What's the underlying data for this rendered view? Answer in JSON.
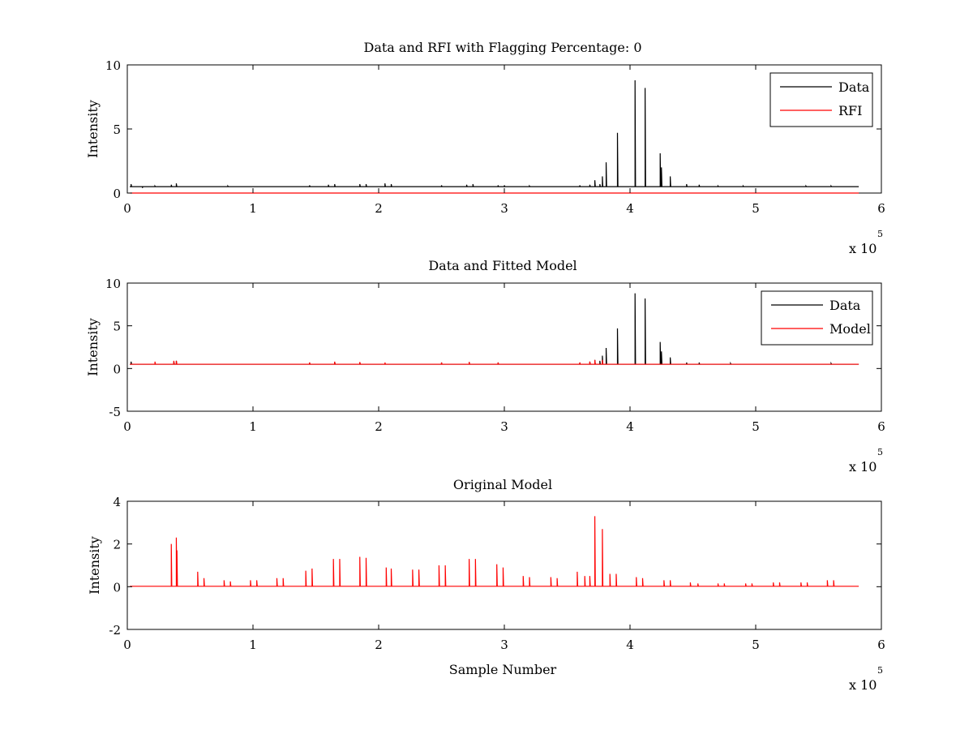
{
  "chart_data": [
    {
      "type": "line",
      "title": "Data and RFI with Flagging Percentage: 0",
      "xlabel": "",
      "ylabel": "Intensity",
      "xlim": [
        0,
        600000
      ],
      "ylim": [
        0,
        10
      ],
      "x_ticks": [
        "0",
        "1",
        "2",
        "3",
        "4",
        "5",
        "6"
      ],
      "y_ticks": [
        "0",
        "5",
        "10"
      ],
      "x_exponent": {
        "base": "x 10",
        "power": "5"
      },
      "grid": false,
      "legend_position": "top-right",
      "legend": [
        "Data",
        "RFI"
      ],
      "series": [
        {
          "name": "Data",
          "color": "#000000",
          "baseline": 0.5,
          "spikes": [
            [
              3000,
              0.7
            ],
            [
              12000,
              0.4
            ],
            [
              22000,
              0.55
            ],
            [
              35000,
              0.65
            ],
            [
              39000,
              0.75
            ],
            [
              80000,
              0.55
            ],
            [
              145000,
              0.6
            ],
            [
              160000,
              0.65
            ],
            [
              165000,
              0.7
            ],
            [
              185000,
              0.7
            ],
            [
              190000,
              0.7
            ],
            [
              205000,
              0.75
            ],
            [
              210000,
              0.7
            ],
            [
              250000,
              0.6
            ],
            [
              270000,
              0.65
            ],
            [
              275000,
              0.7
            ],
            [
              295000,
              0.6
            ],
            [
              300000,
              0.6
            ],
            [
              320000,
              0.55
            ],
            [
              360000,
              0.6
            ],
            [
              368000,
              0.65
            ],
            [
              372000,
              1.0
            ],
            [
              376000,
              0.7
            ],
            [
              378000,
              1.3
            ],
            [
              381000,
              2.4
            ],
            [
              390000,
              4.7
            ],
            [
              404000,
              8.8
            ],
            [
              412000,
              8.2
            ],
            [
              424000,
              3.1
            ],
            [
              425000,
              2.0
            ],
            [
              432000,
              1.3
            ],
            [
              445000,
              0.7
            ],
            [
              455000,
              0.65
            ],
            [
              470000,
              0.55
            ],
            [
              490000,
              0.55
            ],
            [
              540000,
              0.55
            ],
            [
              560000,
              0.55
            ]
          ]
        },
        {
          "name": "RFI",
          "color": "#ff0000",
          "baseline": 0,
          "spikes": []
        }
      ]
    },
    {
      "type": "line",
      "title": "Data and Fitted Model",
      "xlabel": "",
      "ylabel": "Intensity",
      "xlim": [
        0,
        600000
      ],
      "ylim": [
        -5,
        10
      ],
      "x_ticks": [
        "0",
        "1",
        "2",
        "3",
        "4",
        "5",
        "6"
      ],
      "y_ticks": [
        "-5",
        "0",
        "5",
        "10"
      ],
      "x_exponent": {
        "base": "x 10",
        "power": "5"
      },
      "grid": false,
      "legend_position": "top-right",
      "legend": [
        "Data",
        "Model"
      ],
      "series": [
        {
          "name": "Data",
          "color": "#000000",
          "baseline": 0.5,
          "spikes": [
            [
              3000,
              0.8
            ],
            [
              22000,
              0.7
            ],
            [
              37000,
              0.8
            ],
            [
              39000,
              0.9
            ],
            [
              145000,
              0.7
            ],
            [
              165000,
              0.75
            ],
            [
              185000,
              0.7
            ],
            [
              250000,
              0.7
            ],
            [
              272000,
              0.75
            ],
            [
              295000,
              0.7
            ],
            [
              360000,
              0.7
            ],
            [
              368000,
              0.8
            ],
            [
              372000,
              1.0
            ],
            [
              376000,
              0.9
            ],
            [
              378000,
              1.5
            ],
            [
              381000,
              2.4
            ],
            [
              390000,
              4.7
            ],
            [
              404000,
              8.8
            ],
            [
              412000,
              8.2
            ],
            [
              424000,
              3.1
            ],
            [
              425000,
              2.0
            ],
            [
              432000,
              1.3
            ],
            [
              445000,
              0.7
            ],
            [
              455000,
              0.7
            ],
            [
              480000,
              0.6
            ],
            [
              560000,
              0.6
            ]
          ]
        },
        {
          "name": "Model",
          "color": "#ff0000",
          "baseline": 0.5,
          "spikes": [
            [
              22000,
              0.8
            ],
            [
              37000,
              0.9
            ],
            [
              39000,
              0.9
            ],
            [
              145000,
              0.7
            ],
            [
              165000,
              0.8
            ],
            [
              185000,
              0.75
            ],
            [
              205000,
              0.7
            ],
            [
              250000,
              0.7
            ],
            [
              272000,
              0.75
            ],
            [
              295000,
              0.7
            ],
            [
              360000,
              0.7
            ],
            [
              368000,
              0.8
            ],
            [
              372000,
              1.0
            ],
            [
              378000,
              1.0
            ]
          ]
        }
      ]
    },
    {
      "type": "line",
      "title": "Original Model",
      "xlabel": "Sample Number",
      "ylabel": "Intensity",
      "xlim": [
        0,
        600000
      ],
      "ylim": [
        -2,
        4
      ],
      "x_ticks": [
        "0",
        "1",
        "2",
        "3",
        "4",
        "5",
        "6"
      ],
      "y_ticks": [
        "-2",
        "0",
        "2",
        "4"
      ],
      "x_exponent": {
        "base": "x 10",
        "power": "5"
      },
      "grid": false,
      "legend_position": "",
      "legend": [],
      "series": [
        {
          "name": "",
          "color": "#ff0000",
          "baseline": 0.02,
          "spikes": [
            [
              35000,
              2.0
            ],
            [
              39000,
              2.3
            ],
            [
              39500,
              1.7
            ],
            [
              56000,
              0.7
            ],
            [
              61000,
              0.4
            ],
            [
              77000,
              0.3
            ],
            [
              82000,
              0.25
            ],
            [
              98000,
              0.3
            ],
            [
              103000,
              0.3
            ],
            [
              119000,
              0.4
            ],
            [
              124000,
              0.4
            ],
            [
              142000,
              0.75
            ],
            [
              147000,
              0.85
            ],
            [
              164000,
              1.3
            ],
            [
              169000,
              1.3
            ],
            [
              185000,
              1.4
            ],
            [
              190000,
              1.35
            ],
            [
              206000,
              0.9
            ],
            [
              210000,
              0.85
            ],
            [
              227000,
              0.8
            ],
            [
              232000,
              0.8
            ],
            [
              248000,
              1.0
            ],
            [
              253000,
              1.0
            ],
            [
              272000,
              1.3
            ],
            [
              277000,
              1.3
            ],
            [
              294000,
              1.05
            ],
            [
              299000,
              0.9
            ],
            [
              315000,
              0.5
            ],
            [
              320000,
              0.45
            ],
            [
              337000,
              0.45
            ],
            [
              342000,
              0.4
            ],
            [
              358000,
              0.7
            ],
            [
              364000,
              0.5
            ],
            [
              368000,
              0.5
            ],
            [
              372000,
              3.3
            ],
            [
              378000,
              2.7
            ],
            [
              384000,
              0.6
            ],
            [
              389000,
              0.6
            ],
            [
              405000,
              0.45
            ],
            [
              410000,
              0.4
            ],
            [
              427000,
              0.3
            ],
            [
              432000,
              0.3
            ],
            [
              448000,
              0.2
            ],
            [
              454000,
              0.15
            ],
            [
              470000,
              0.15
            ],
            [
              475000,
              0.15
            ],
            [
              492000,
              0.15
            ],
            [
              497000,
              0.15
            ],
            [
              514000,
              0.2
            ],
            [
              519000,
              0.2
            ],
            [
              536000,
              0.2
            ],
            [
              541000,
              0.2
            ],
            [
              557000,
              0.3
            ],
            [
              562000,
              0.3
            ]
          ]
        }
      ]
    }
  ]
}
